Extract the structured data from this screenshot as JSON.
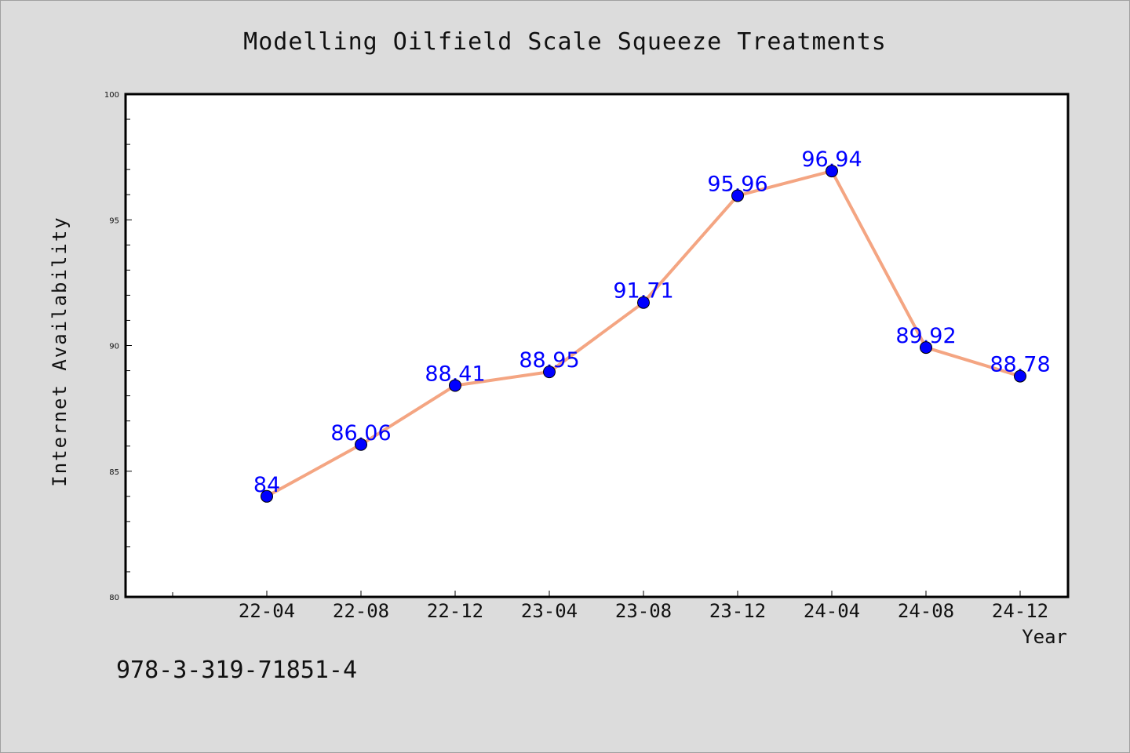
{
  "chart_data": {
    "type": "line",
    "title": "Modelling Oilfield Scale Squeeze Treatments",
    "xlabel": "Year",
    "ylabel": "Internet Availability",
    "categories": [
      "22-04",
      "22-08",
      "22-12",
      "23-04",
      "23-08",
      "23-12",
      "24-04",
      "24-08",
      "24-12"
    ],
    "series": [
      {
        "values": [
          84,
          86.06,
          88.41,
          88.95,
          91.71,
          95.96,
          96.94,
          89.92,
          88.78
        ],
        "labels": [
          "84",
          "86.06",
          "88.41",
          "88.95",
          "91.71",
          "95.96",
          "96.94",
          "89.92",
          "88.78"
        ],
        "line_color": "#f4a582",
        "marker_color": "#0000ff",
        "label_color": "#0000ff"
      }
    ],
    "ylim": [
      80,
      100
    ],
    "yticks": [
      80,
      85,
      90,
      95,
      100
    ],
    "grid": false,
    "legend": "none"
  },
  "footer_text": "978-3-319-71851-4",
  "colors": {
    "background": "#dcdcdc",
    "plot_background": "#ffffff"
  }
}
